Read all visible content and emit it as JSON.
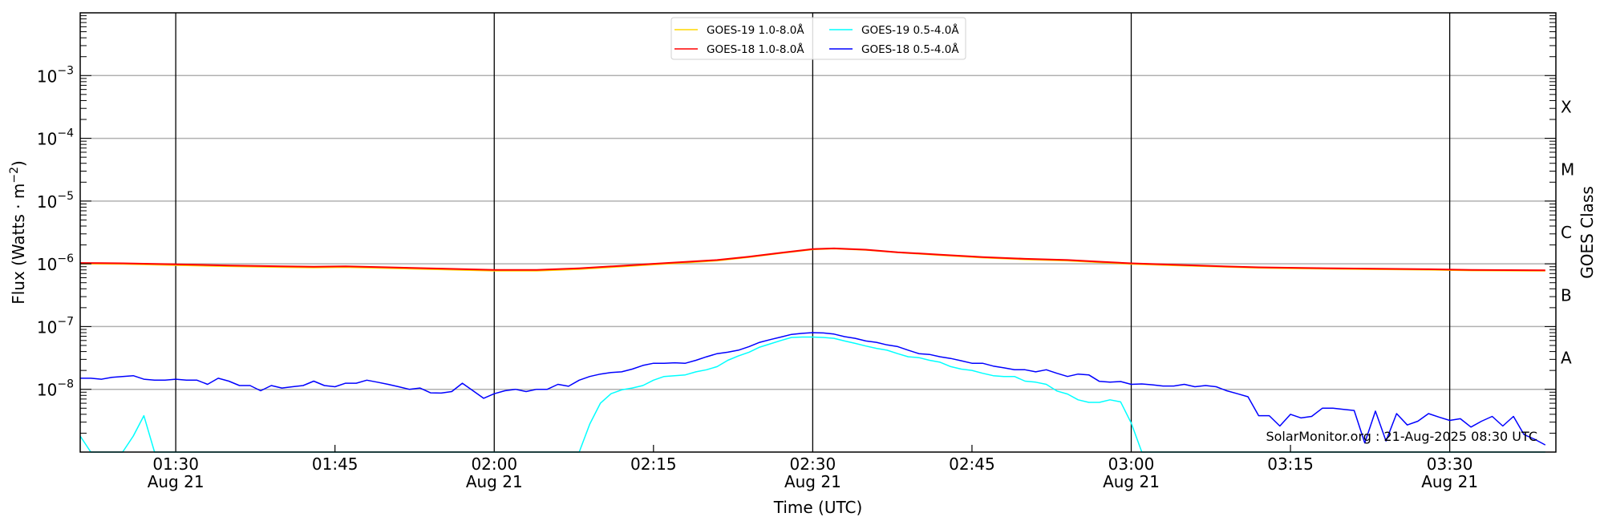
{
  "chart_data": {
    "type": "line",
    "xlabel": "Time (UTC)",
    "ylabel": "Flux (Watts · m",
    "ylabel_superscript": "−2",
    "ylabel_close": ")",
    "right_ylabel": "GOES Class",
    "yscale": "log",
    "ylim": [
      1e-09,
      0.01
    ],
    "xlim": [
      "01:21",
      "03:40"
    ],
    "grid": "horizontal gray lines at decades; vertical black lines every 30 minutes",
    "legend_position": "top-center",
    "watermark": "SolarMonitor.org : 21-Aug-2025 08:30 UTC",
    "y_ticks": [
      {
        "value": 0.001,
        "base": "10",
        "exp": "−3"
      },
      {
        "value": 0.0001,
        "base": "10",
        "exp": "−4"
      },
      {
        "value": 1e-05,
        "base": "10",
        "exp": "−5"
      },
      {
        "value": 1e-06,
        "base": "10",
        "exp": "−6"
      },
      {
        "value": 1e-07,
        "base": "10",
        "exp": "−7"
      },
      {
        "value": 1e-08,
        "base": "10",
        "exp": "−8"
      }
    ],
    "x_ticks": [
      {
        "time": "01:30",
        "label": "01:30",
        "date": "Aug 21"
      },
      {
        "time": "01:45",
        "label": "01:45",
        "date": ""
      },
      {
        "time": "02:00",
        "label": "02:00",
        "date": "Aug 21"
      },
      {
        "time": "02:15",
        "label": "02:15",
        "date": ""
      },
      {
        "time": "02:30",
        "label": "02:30",
        "date": "Aug 21"
      },
      {
        "time": "02:45",
        "label": "02:45",
        "date": ""
      },
      {
        "time": "03:00",
        "label": "03:00",
        "date": "Aug 21"
      },
      {
        "time": "03:15",
        "label": "03:15",
        "date": ""
      },
      {
        "time": "03:30",
        "label": "03:30",
        "date": "Aug 21"
      }
    ],
    "goes_classes": [
      {
        "label": "X",
        "value": 0.000316
      },
      {
        "label": "M",
        "value": 3.16e-05
      },
      {
        "label": "C",
        "value": 3.16e-06
      },
      {
        "label": "B",
        "value": 3.16e-07
      },
      {
        "label": "A",
        "value": 3.16e-08
      }
    ],
    "series": [
      {
        "name": "GOES-19 1.0-8.0Å",
        "color": "#FFD700",
        "x": [
          "01:21",
          "01:25",
          "01:30",
          "01:35",
          "01:40",
          "01:43",
          "01:46",
          "01:50",
          "01:55",
          "02:00",
          "02:04",
          "02:08",
          "02:12",
          "02:15",
          "02:18",
          "02:21",
          "02:24",
          "02:27",
          "02:30",
          "02:32",
          "02:35",
          "02:38",
          "02:42",
          "02:46",
          "02:50",
          "02:54",
          "02:57",
          "03:00",
          "03:04",
          "03:08",
          "03:12",
          "03:16",
          "03:22",
          "03:28",
          "03:32",
          "03:39"
        ],
        "y": [
          1e-06,
          9.9e-07,
          9.5e-07,
          9.1e-07,
          8.8e-07,
          8.7e-07,
          8.8e-07,
          8.5e-07,
          8.1e-07,
          7.7e-07,
          7.7e-07,
          8.2e-07,
          9e-07,
          9.7e-07,
          1.04e-06,
          1.12e-06,
          1.27e-06,
          1.47e-06,
          1.69e-06,
          1.74e-06,
          1.66e-06,
          1.51e-06,
          1.37e-06,
          1.25e-06,
          1.17e-06,
          1.12e-06,
          1.05e-06,
          9.9e-07,
          9.4e-07,
          9e-07,
          8.6e-07,
          8.4e-07,
          8.2e-07,
          8e-07,
          7.8e-07,
          7.7e-07
        ]
      },
      {
        "name": "GOES-18 1.0-8.0Å",
        "color": "#FF0000",
        "x": [
          "01:21",
          "01:25",
          "01:30",
          "01:35",
          "01:40",
          "01:43",
          "01:46",
          "01:50",
          "01:55",
          "02:00",
          "02:04",
          "02:08",
          "02:12",
          "02:15",
          "02:18",
          "02:21",
          "02:24",
          "02:27",
          "02:30",
          "02:32",
          "02:35",
          "02:38",
          "02:42",
          "02:46",
          "02:50",
          "02:54",
          "02:57",
          "03:00",
          "03:04",
          "03:08",
          "03:12",
          "03:16",
          "03:22",
          "03:28",
          "03:32",
          "03:39"
        ],
        "y": [
          1.03e-06,
          1.02e-06,
          9.8e-07,
          9.4e-07,
          9.1e-07,
          9e-07,
          9.1e-07,
          8.8e-07,
          8.4e-07,
          8e-07,
          8e-07,
          8.5e-07,
          9.3e-07,
          1e-06,
          1.07e-06,
          1.15e-06,
          1.3e-06,
          1.5e-06,
          1.72e-06,
          1.76e-06,
          1.68e-06,
          1.53e-06,
          1.4e-06,
          1.28e-06,
          1.2e-06,
          1.15e-06,
          1.08e-06,
          1.02e-06,
          9.7e-07,
          9.2e-07,
          8.8e-07,
          8.6e-07,
          8.4e-07,
          8.2e-07,
          8e-07,
          7.9e-07
        ]
      },
      {
        "name": "GOES-19 0.5-4.0Å",
        "color": "#00FFFF",
        "x": [
          "01:21",
          "01:22",
          "01:23",
          "01:24",
          "01:25",
          "01:26",
          "01:27",
          "01:28",
          "02:07",
          "02:08",
          "02:09",
          "02:10",
          "02:11",
          "02:12",
          "02:13",
          "02:14",
          "02:15",
          "02:16",
          "02:17",
          "02:18",
          "02:19",
          "02:20",
          "02:21",
          "02:22",
          "02:23",
          "02:24",
          "02:25",
          "02:26",
          "02:27",
          "02:28",
          "02:29",
          "02:30",
          "02:31",
          "02:32",
          "02:33",
          "02:34",
          "02:35",
          "02:36",
          "02:37",
          "02:38",
          "02:39",
          "02:40",
          "02:41",
          "02:42",
          "02:43",
          "02:44",
          "02:45",
          "02:46",
          "02:47",
          "02:48",
          "02:49",
          "02:50",
          "02:51",
          "02:52",
          "02:53",
          "02:54",
          "02:55",
          "02:56",
          "02:57",
          "02:58",
          "02:59",
          "03:00",
          "03:01",
          "03:39"
        ],
        "y": [
          1.8e-09,
          null,
          null,
          null,
          1e-09,
          1.8e-09,
          3.8e-09,
          null,
          null,
          1e-09,
          2.8e-09,
          6e-09,
          8.5e-09,
          9.8e-09,
          1.05e-08,
          1.15e-08,
          1.4e-08,
          1.6e-08,
          1.65e-08,
          1.7e-08,
          1.9e-08,
          2.05e-08,
          2.3e-08,
          2.9e-08,
          3.4e-08,
          3.9e-08,
          4.7e-08,
          5.3e-08,
          6e-08,
          6.7e-08,
          6.8e-08,
          6.8e-08,
          6.7e-08,
          6.5e-08,
          5.9e-08,
          5.4e-08,
          4.9e-08,
          4.5e-08,
          4.2e-08,
          3.7e-08,
          3.3e-08,
          3.2e-08,
          2.9e-08,
          2.7e-08,
          2.3e-08,
          2.1e-08,
          2e-08,
          1.8e-08,
          1.65e-08,
          1.6e-08,
          1.6e-08,
          1.35e-08,
          1.3e-08,
          1.2e-08,
          9.4e-09,
          8.4e-09,
          6.8e-09,
          6.2e-09,
          6.2e-09,
          6.8e-09,
          6.3e-09,
          2.9e-09,
          null,
          null
        ]
      },
      {
        "name": "GOES-18 0.5-4.0Å",
        "color": "#0000FF",
        "x": [
          "01:21",
          "01:22",
          "01:23",
          "01:24",
          "01:25",
          "01:26",
          "01:27",
          "01:28",
          "01:29",
          "01:30",
          "01:31",
          "01:32",
          "01:33",
          "01:34",
          "01:35",
          "01:36",
          "01:37",
          "01:38",
          "01:39",
          "01:40",
          "01:41",
          "01:42",
          "01:43",
          "01:44",
          "01:45",
          "01:46",
          "01:47",
          "01:48",
          "01:49",
          "01:50",
          "01:51",
          "01:52",
          "01:53",
          "01:54",
          "01:55",
          "01:56",
          "01:57",
          "01:58",
          "01:59",
          "02:00",
          "02:01",
          "02:02",
          "02:03",
          "02:04",
          "02:05",
          "02:06",
          "02:07",
          "02:08",
          "02:09",
          "02:10",
          "02:11",
          "02:12",
          "02:13",
          "02:14",
          "02:15",
          "02:16",
          "02:17",
          "02:18",
          "02:19",
          "02:20",
          "02:21",
          "02:22",
          "02:23",
          "02:24",
          "02:25",
          "02:26",
          "02:27",
          "02:28",
          "02:29",
          "02:30",
          "02:31",
          "02:32",
          "02:33",
          "02:34",
          "02:35",
          "02:36",
          "02:37",
          "02:38",
          "02:39",
          "02:40",
          "02:41",
          "02:42",
          "02:43",
          "02:44",
          "02:45",
          "02:46",
          "02:47",
          "02:48",
          "02:49",
          "02:50",
          "02:51",
          "02:52",
          "02:53",
          "02:54",
          "02:55",
          "02:56",
          "02:57",
          "02:58",
          "02:59",
          "03:00",
          "03:01",
          "03:02",
          "03:03",
          "03:04",
          "03:05",
          "03:06",
          "03:07",
          "03:08",
          "03:09",
          "03:10",
          "03:11",
          "03:12",
          "03:13",
          "03:14",
          "03:15",
          "03:16",
          "03:17",
          "03:18",
          "03:19",
          "03:20",
          "03:21",
          "03:22",
          "03:23",
          "03:24",
          "03:25",
          "03:26",
          "03:27",
          "03:28",
          "03:29",
          "03:30",
          "03:31",
          "03:32",
          "03:33",
          "03:34",
          "03:35",
          "03:36",
          "03:37",
          "03:38",
          "03:39"
        ],
        "y": [
          1.5e-08,
          1.5e-08,
          1.45e-08,
          1.55e-08,
          1.6e-08,
          1.65e-08,
          1.45e-08,
          1.4e-08,
          1.4e-08,
          1.45e-08,
          1.4e-08,
          1.4e-08,
          1.2e-08,
          1.5e-08,
          1.35e-08,
          1.15e-08,
          1.15e-08,
          9.5e-09,
          1.15e-08,
          1.05e-08,
          1.1e-08,
          1.15e-08,
          1.35e-08,
          1.15e-08,
          1.1e-08,
          1.25e-08,
          1.25e-08,
          1.4e-08,
          1.3e-08,
          1.2e-08,
          1.1e-08,
          1e-08,
          1.05e-08,
          8.8e-09,
          8.7e-09,
          9.2e-09,
          1.25e-08,
          9.5e-09,
          7.2e-09,
          8.5e-09,
          9.5e-09,
          1e-08,
          9.2e-09,
          1e-08,
          1e-08,
          1.2e-08,
          1.12e-08,
          1.4e-08,
          1.6e-08,
          1.75e-08,
          1.85e-08,
          1.9e-08,
          2.1e-08,
          2.4e-08,
          2.6e-08,
          2.6e-08,
          2.65e-08,
          2.6e-08,
          2.9e-08,
          3.3e-08,
          3.7e-08,
          3.9e-08,
          4.2e-08,
          4.8e-08,
          5.6e-08,
          6.2e-08,
          6.8e-08,
          7.5e-08,
          7.8e-08,
          8e-08,
          7.9e-08,
          7.6e-08,
          6.9e-08,
          6.5e-08,
          5.9e-08,
          5.6e-08,
          5.1e-08,
          4.8e-08,
          4.2e-08,
          3.7e-08,
          3.6e-08,
          3.3e-08,
          3.1e-08,
          2.85e-08,
          2.6e-08,
          2.6e-08,
          2.35e-08,
          2.2e-08,
          2.05e-08,
          2.05e-08,
          1.9e-08,
          2.05e-08,
          1.8e-08,
          1.6e-08,
          1.75e-08,
          1.7e-08,
          1.34e-08,
          1.3e-08,
          1.33e-08,
          1.2e-08,
          1.22e-08,
          1.18e-08,
          1.13e-08,
          1.13e-08,
          1.2e-08,
          1.1e-08,
          1.15e-08,
          1.1e-08,
          9.5e-09,
          8.5e-09,
          7.6e-09,
          3.8e-09,
          3.8e-09,
          2.6e-09,
          4e-09,
          3.5e-09,
          3.7e-09,
          5e-09,
          5e-09,
          4.8e-09,
          4.6e-09,
          1.4e-09,
          4.5e-09,
          1.5e-09,
          4.1e-09,
          2.7e-09,
          3.1e-09,
          4.1e-09,
          3.6e-09,
          3.2e-09,
          3.4e-09,
          2.5e-09,
          3.1e-09,
          3.7e-09,
          2.6e-09,
          3.7e-09,
          1.9e-09,
          1.6e-09,
          1.3e-09
        ]
      }
    ]
  }
}
